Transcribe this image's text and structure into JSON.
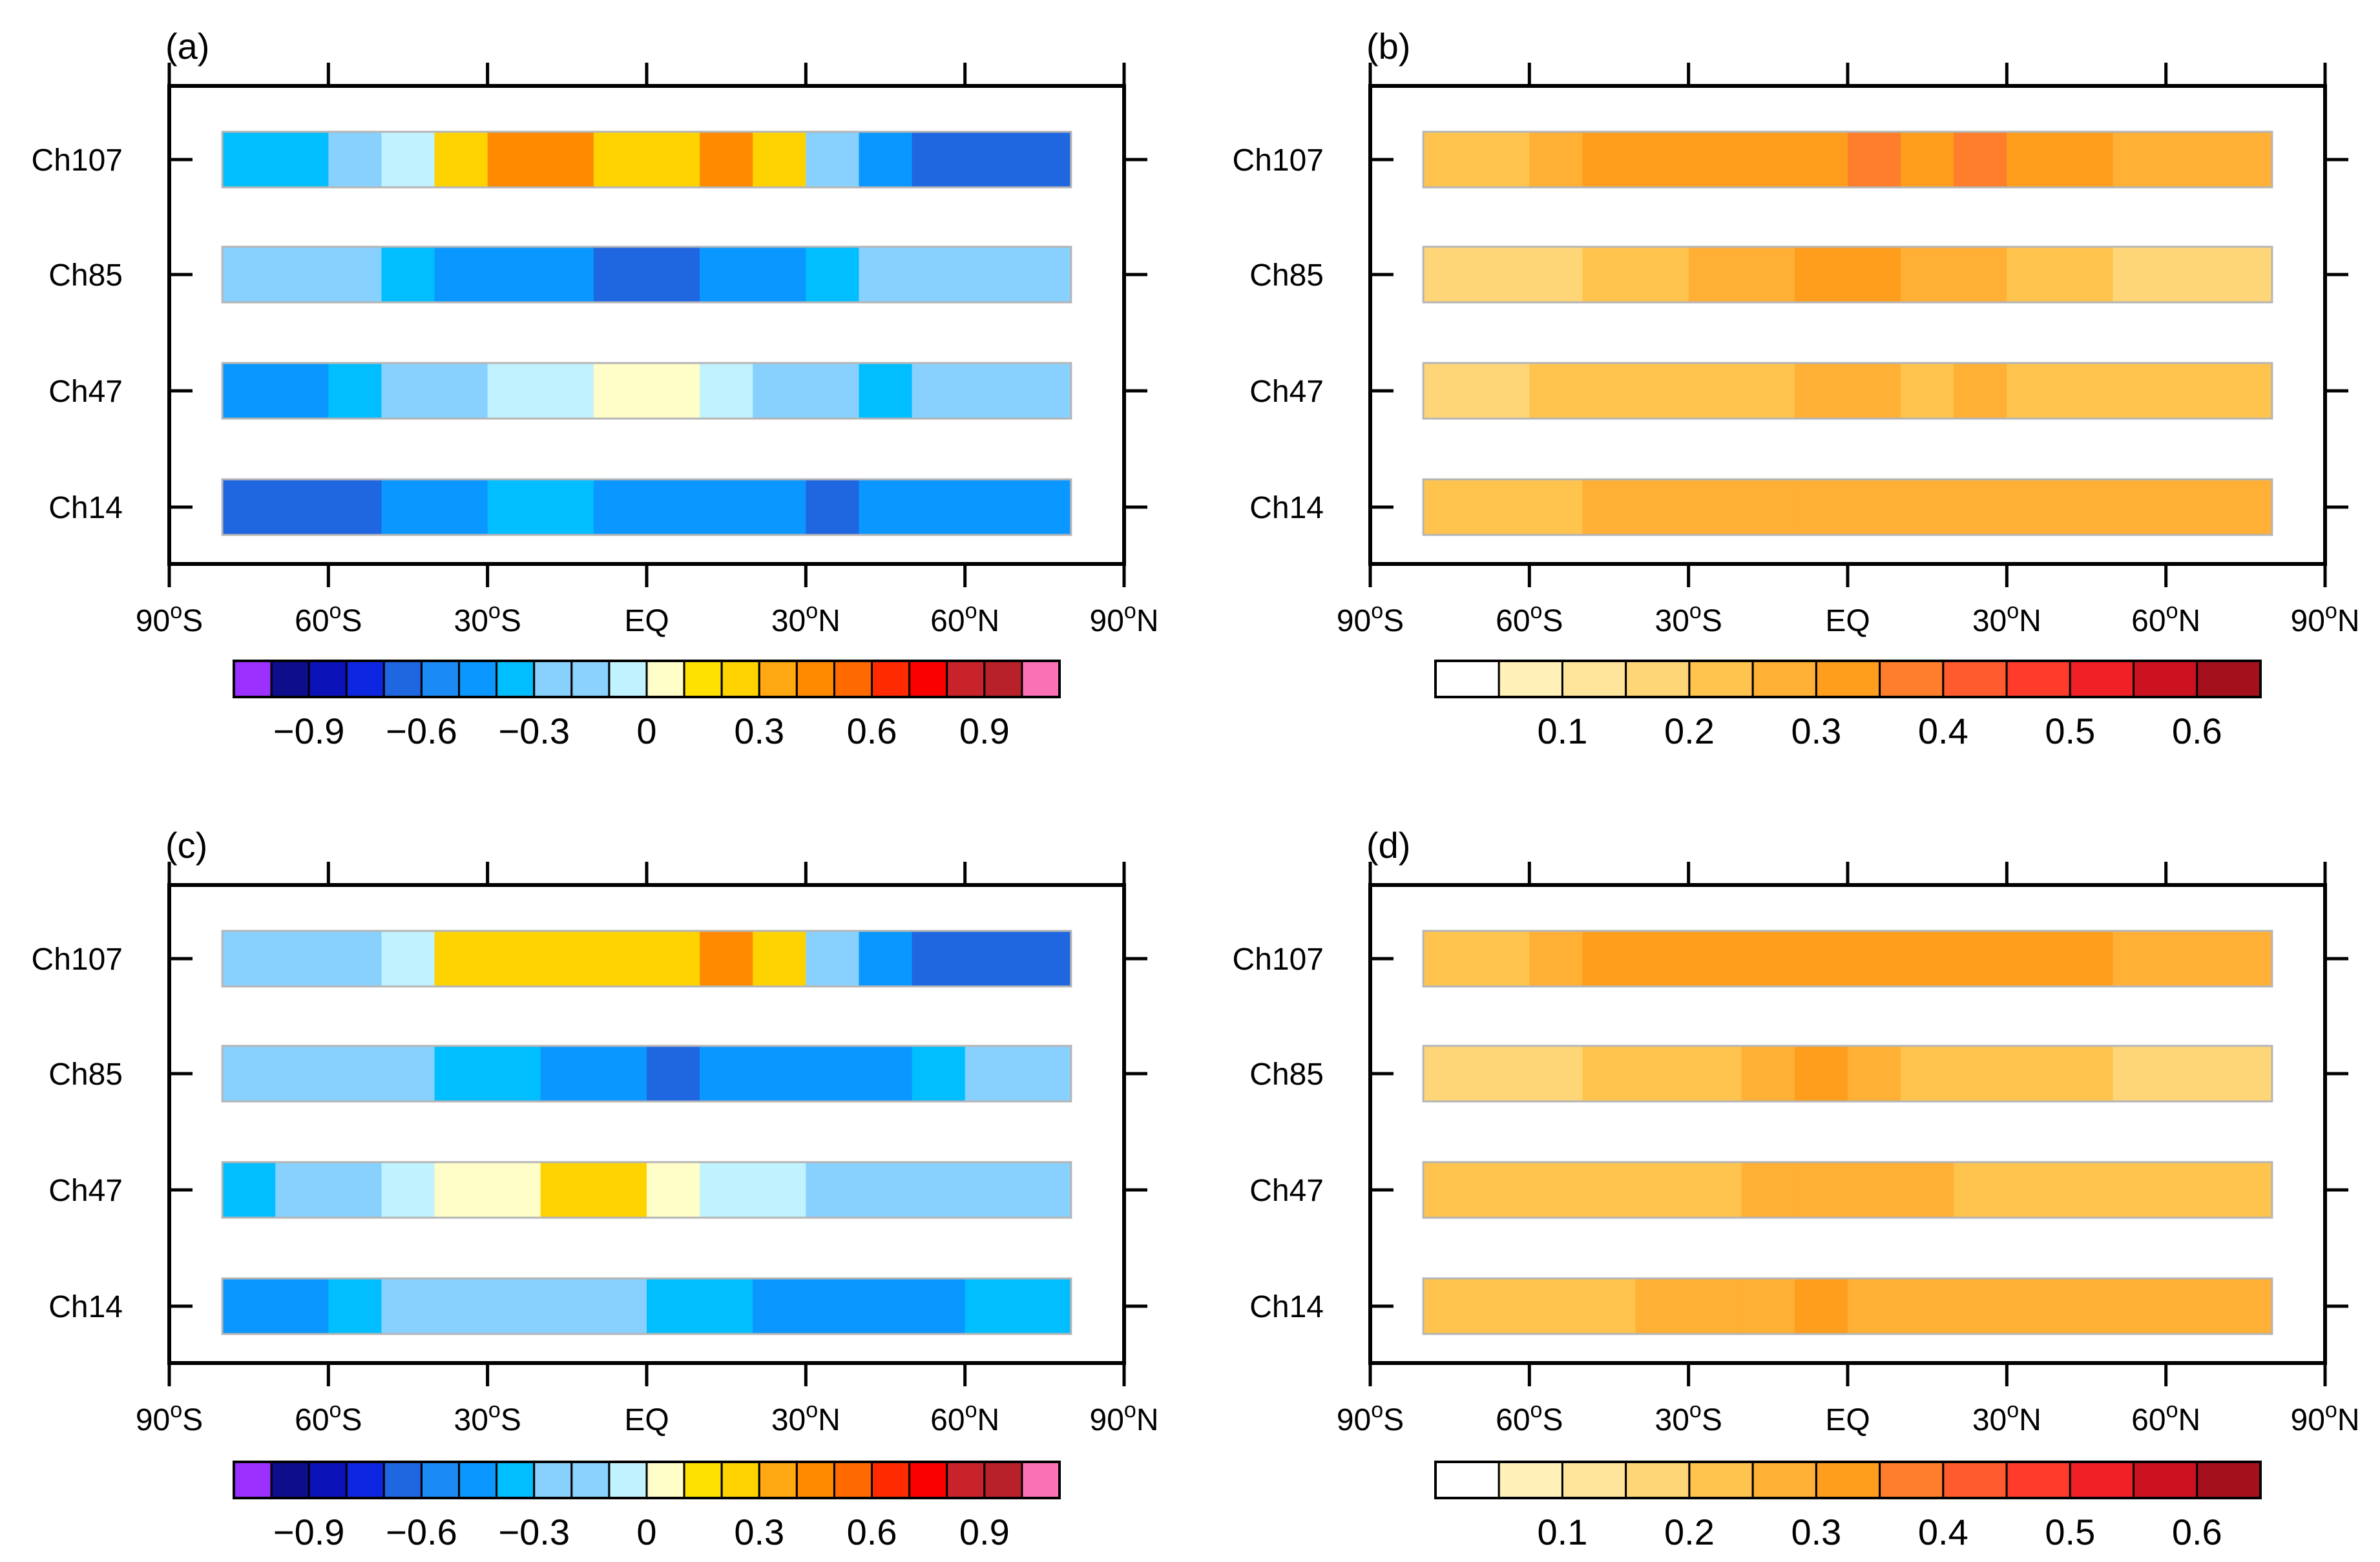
{
  "palettes": {
    "diverging": [
      "#9b30ff",
      "#0e0d8c",
      "#0b13b8",
      "#0d27e1",
      "#1f66e1",
      "#1a8af5",
      "#0a97ff",
      "#00beff",
      "#88d1fe",
      "#8bd2fe",
      "#c1f2ff",
      "#fffdc8",
      "#ffe100",
      "#ffd300",
      "#ffa811",
      "#ff8a00",
      "#ff6a00",
      "#ff2a00",
      "#fb0000",
      "#c8232a",
      "#b82129",
      "#fb71b5"
    ],
    "sequential": [
      "#ffffff",
      "#fff1b8",
      "#ffe49c",
      "#ffd677",
      "#ffc44e",
      "#ffb035",
      "#ff9e1d",
      "#ff7e2b",
      "#ff5b2f",
      "#ff3b2c",
      "#f12026",
      "#cc1121",
      "#a4101c"
    ]
  },
  "chart_data": [
    {
      "type": "heatmap",
      "panel_label": "(a)",
      "x_edges": [
        -80,
        -60,
        -50,
        -40,
        -30,
        -10,
        10,
        20,
        30,
        40,
        50,
        80
      ],
      "x_ticks": [
        "90°S",
        "60°S",
        "30°S",
        "EQ",
        "30°N",
        "60°N",
        "90°N"
      ],
      "xlim": [
        -90,
        90
      ],
      "rows": [
        {
          "label": "Ch107",
          "values": [
            -0.35,
            -0.25,
            -0.05,
            0.25,
            0.45,
            0.25,
            0.45,
            0.25,
            -0.25,
            -0.45,
            -0.65
          ]
        },
        {
          "label": "Ch85",
          "values": [
            -0.25,
            -0.25,
            -0.35,
            -0.45,
            -0.45,
            -0.65,
            -0.45,
            -0.45,
            -0.35,
            -0.25,
            -0.25
          ]
        },
        {
          "label": "Ch47",
          "values": [
            -0.45,
            -0.35,
            -0.25,
            -0.25,
            -0.05,
            0.05,
            -0.05,
            -0.25,
            -0.25,
            -0.35,
            -0.25
          ]
        },
        {
          "label": "Ch14",
          "values": [
            -0.65,
            -0.65,
            -0.45,
            -0.45,
            -0.35,
            -0.45,
            -0.45,
            -0.45,
            -0.65,
            -0.45,
            -0.45
          ]
        }
      ],
      "colorbar": {
        "palette": "diverging",
        "tick_labels": [
          "−0.9",
          "−0.6",
          "−0.3",
          "0",
          "0.3",
          "0.6",
          "0.9"
        ]
      }
    },
    {
      "type": "heatmap",
      "panel_label": "(b)",
      "x_edges": [
        -80,
        -60,
        -50,
        -30,
        -10,
        0,
        10,
        20,
        30,
        50,
        80
      ],
      "x_ticks": [
        "90°S",
        "60°S",
        "30°S",
        "EQ",
        "30°N",
        "60°N",
        "90°N"
      ],
      "xlim": [
        -90,
        90
      ],
      "rows": [
        {
          "label": "Ch107",
          "values": [
            0.225,
            0.275,
            0.325,
            0.325,
            0.325,
            0.375,
            0.325,
            0.375,
            0.325,
            0.275
          ]
        },
        {
          "label": "Ch85",
          "values": [
            0.175,
            0.175,
            0.225,
            0.275,
            0.325,
            0.325,
            0.275,
            0.275,
            0.225,
            0.175
          ]
        },
        {
          "label": "Ch47",
          "values": [
            0.175,
            0.225,
            0.225,
            0.225,
            0.275,
            0.275,
            0.225,
            0.275,
            0.225,
            0.225
          ]
        },
        {
          "label": "Ch14",
          "values": [
            0.225,
            0.225,
            0.275,
            0.275,
            0.275,
            0.275,
            0.275,
            0.275,
            0.275,
            0.275
          ]
        }
      ],
      "colorbar": {
        "palette": "sequential",
        "tick_labels": [
          "0.1",
          "0.2",
          "0.3",
          "0.4",
          "0.5",
          "0.6"
        ]
      }
    },
    {
      "type": "heatmap",
      "panel_label": "(c)",
      "x_edges": [
        -80,
        -70,
        -60,
        -50,
        -40,
        -30,
        -20,
        -10,
        0,
        10,
        20,
        30,
        40,
        50,
        60,
        80
      ],
      "x_ticks": [
        "90°S",
        "60°S",
        "30°S",
        "EQ",
        "30°N",
        "60°N",
        "90°N"
      ],
      "xlim": [
        -90,
        90
      ],
      "rows": [
        {
          "label": "Ch107",
          "values": [
            -0.25,
            -0.25,
            -0.25,
            -0.05,
            0.25,
            0.25,
            0.25,
            0.25,
            0.25,
            0.45,
            0.25,
            -0.25,
            -0.45,
            -0.65,
            -0.65
          ]
        },
        {
          "label": "Ch85",
          "values": [
            -0.25,
            -0.25,
            -0.25,
            -0.25,
            -0.35,
            -0.35,
            -0.45,
            -0.45,
            -0.65,
            -0.45,
            -0.45,
            -0.45,
            -0.45,
            -0.35,
            -0.25
          ]
        },
        {
          "label": "Ch47",
          "values": [
            -0.35,
            -0.25,
            -0.25,
            -0.05,
            0.05,
            0.05,
            0.25,
            0.25,
            0.05,
            -0.05,
            -0.05,
            -0.25,
            -0.25,
            -0.25,
            -0.25
          ]
        },
        {
          "label": "Ch14",
          "values": [
            -0.45,
            -0.45,
            -0.35,
            -0.25,
            -0.25,
            -0.25,
            -0.25,
            -0.25,
            -0.35,
            -0.35,
            -0.45,
            -0.45,
            -0.45,
            -0.45,
            -0.35
          ]
        }
      ],
      "colorbar": {
        "palette": "diverging",
        "tick_labels": [
          "−0.9",
          "−0.6",
          "−0.3",
          "0",
          "0.3",
          "0.6",
          "0.9"
        ]
      }
    },
    {
      "type": "heatmap",
      "panel_label": "(d)",
      "x_edges": [
        -80,
        -60,
        -50,
        -40,
        -20,
        -10,
        0,
        10,
        20,
        30,
        50,
        80
      ],
      "x_ticks": [
        "90°S",
        "60°S",
        "30°S",
        "EQ",
        "30°N",
        "60°N",
        "90°N"
      ],
      "xlim": [
        -90,
        90
      ],
      "rows": [
        {
          "label": "Ch107",
          "values": [
            0.225,
            0.275,
            0.325,
            0.325,
            0.325,
            0.325,
            0.325,
            0.325,
            0.325,
            0.325,
            0.275
          ]
        },
        {
          "label": "Ch85",
          "values": [
            0.175,
            0.175,
            0.225,
            0.225,
            0.275,
            0.325,
            0.275,
            0.225,
            0.225,
            0.225,
            0.175
          ]
        },
        {
          "label": "Ch47",
          "values": [
            0.225,
            0.225,
            0.225,
            0.225,
            0.275,
            0.275,
            0.275,
            0.275,
            0.225,
            0.225,
            0.225
          ]
        },
        {
          "label": "Ch14",
          "values": [
            0.225,
            0.225,
            0.225,
            0.275,
            0.275,
            0.325,
            0.275,
            0.275,
            0.275,
            0.275,
            0.275
          ]
        }
      ],
      "colorbar": {
        "palette": "sequential",
        "tick_labels": [
          "0.1",
          "0.2",
          "0.3",
          "0.4",
          "0.5",
          "0.6"
        ]
      }
    }
  ]
}
